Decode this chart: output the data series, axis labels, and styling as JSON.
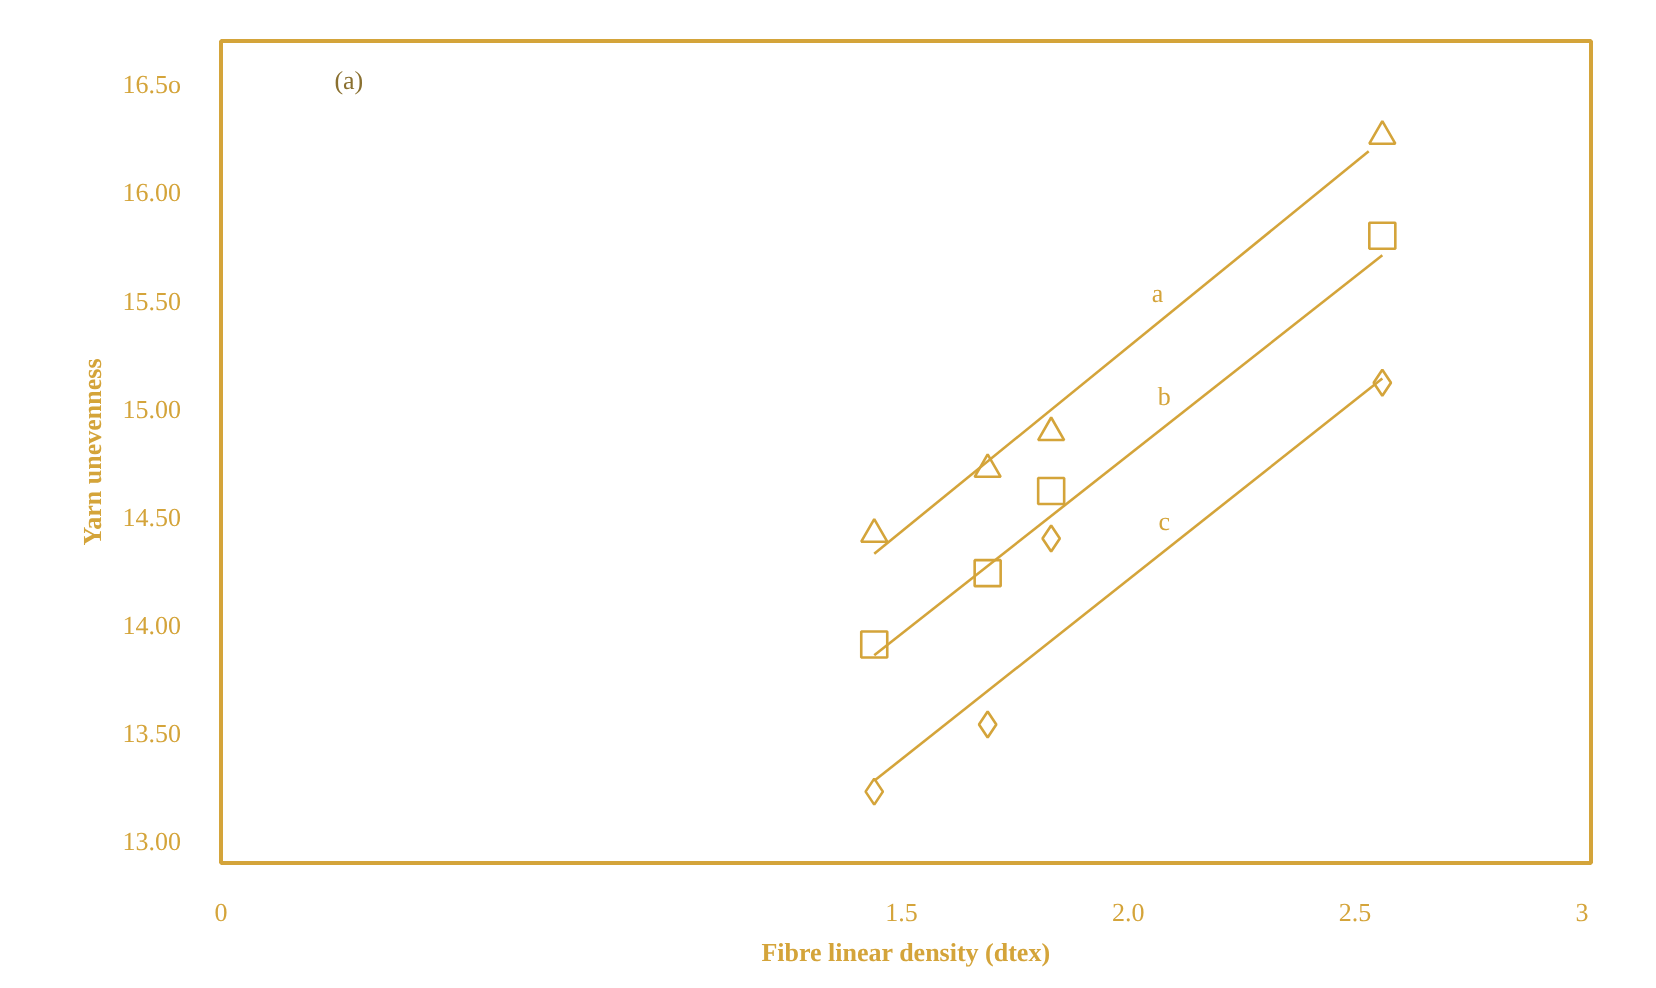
{
  "chart_data": {
    "type": "scatter",
    "xlabel": "Fibre linear density (dtex)",
    "ylabel": "Yarn unevenness",
    "xlim": [
      0,
      3.02
    ],
    "ylim": [
      12.9,
      16.7
    ],
    "xticks": [
      0,
      {
        "value": 1.5,
        "label": "1.5"
      },
      {
        "value": 2.0,
        "label": "2.0"
      },
      {
        "value": 2.5,
        "label": "2.5"
      },
      3
    ],
    "yticks": [
      {
        "value": 13.0,
        "label": "13.00"
      },
      {
        "value": 13.5,
        "label": "13.50"
      },
      {
        "value": 14.0,
        "label": "14.00"
      },
      {
        "value": 14.5,
        "label": "14.50"
      },
      {
        "value": 15.0,
        "label": "15.00"
      },
      {
        "value": 15.5,
        "label": "15.50"
      },
      {
        "value": 16.0,
        "label": "16.00"
      },
      {
        "value": 16.5,
        "label": "16.5o"
      }
    ],
    "grid": false,
    "series": [
      {
        "marker": "triangle",
        "color": "#d4a43a",
        "x": [
          1.44,
          1.69,
          1.83,
          2.56
        ],
        "values": [
          14.42,
          14.72,
          14.89,
          16.26
        ]
      },
      {
        "marker": "square",
        "color": "#d4a43a",
        "x": [
          1.44,
          1.69,
          1.83,
          2.56
        ],
        "values": [
          13.91,
          14.24,
          14.62,
          15.8
        ]
      },
      {
        "marker": "diamond",
        "color": "#d4a43a",
        "x": [
          1.44,
          1.69,
          1.83,
          2.56
        ],
        "values": [
          13.23,
          13.54,
          14.4,
          15.12
        ]
      },
      {
        "type": "line",
        "name": "a",
        "marker": "none",
        "color": "#d4a43a",
        "x": [
          1.44,
          2.53
        ],
        "values": [
          14.33,
          16.19
        ]
      },
      {
        "type": "line",
        "name": "b",
        "marker": "none",
        "color": "#d4a43a",
        "x": [
          1.44,
          2.56
        ],
        "values": [
          13.86,
          15.71
        ]
      },
      {
        "type": "line",
        "name": "c",
        "marker": "none",
        "color": "#d4a43a",
        "x": [
          1.44,
          2.56
        ],
        "values": [
          13.28,
          15.14
        ]
      }
    ],
    "annotations": [
      "(a)"
    ]
  }
}
